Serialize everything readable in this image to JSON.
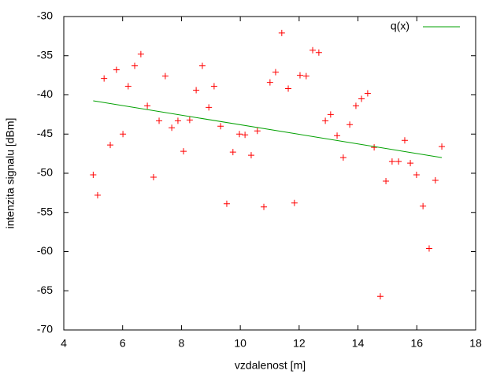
{
  "chart_data": {
    "type": "scatter",
    "xlabel": "vzdalenost [m]",
    "ylabel": "intenzita signalu [dBm]",
    "xlim": [
      4,
      18
    ],
    "xticks": [
      4,
      6,
      8,
      10,
      12,
      14,
      16,
      18
    ],
    "ylim": [
      -70,
      -30
    ],
    "yticks": [
      -70,
      -65,
      -60,
      -55,
      -50,
      -45,
      -40,
      -35,
      -30
    ],
    "color": "#ff0000",
    "x": [
      5.0,
      5.15,
      5.37,
      5.58,
      5.79,
      6.01,
      6.19,
      6.41,
      6.62,
      6.84,
      7.05,
      7.24,
      7.45,
      7.67,
      7.88,
      8.07,
      8.28,
      8.5,
      8.71,
      8.93,
      9.11,
      9.33,
      9.54,
      9.75,
      9.97,
      10.16,
      10.37,
      10.58,
      10.8,
      11.01,
      11.2,
      11.41,
      11.63,
      11.84,
      12.03,
      12.24,
      12.46,
      12.67,
      12.89,
      13.07,
      13.29,
      13.5,
      13.72,
      13.93,
      14.12,
      14.33,
      14.55,
      14.76,
      14.95,
      15.16,
      15.38,
      15.59,
      15.78,
      15.99,
      16.21,
      16.42,
      16.63,
      16.85
    ],
    "values": [
      -50.2,
      -52.8,
      -37.9,
      -46.4,
      -36.8,
      -45.0,
      -38.9,
      -36.3,
      -34.8,
      -41.4,
      -50.5,
      -43.3,
      -37.6,
      -44.2,
      -43.3,
      -47.2,
      -43.2,
      -39.4,
      -36.3,
      -41.6,
      -38.9,
      -44.0,
      -53.9,
      -47.3,
      -45.0,
      -45.1,
      -47.7,
      -44.6,
      -54.3,
      -38.4,
      -37.1,
      -32.1,
      -39.2,
      -53.8,
      -37.5,
      -37.6,
      -34.3,
      -34.6,
      -43.3,
      -42.5,
      -45.2,
      -48.0,
      -43.8,
      -41.4,
      -40.5,
      -39.8,
      -46.7,
      -65.7,
      -51.0,
      -48.5,
      -48.5,
      -45.8,
      -48.7,
      -50.2,
      -54.2,
      -59.6,
      -50.9,
      -46.6
    ],
    "fit": {
      "name": "q(x)",
      "color": "#00a000",
      "x": [
        5.0,
        16.85
      ],
      "values": [
        -40.75,
        -48.0
      ]
    }
  }
}
